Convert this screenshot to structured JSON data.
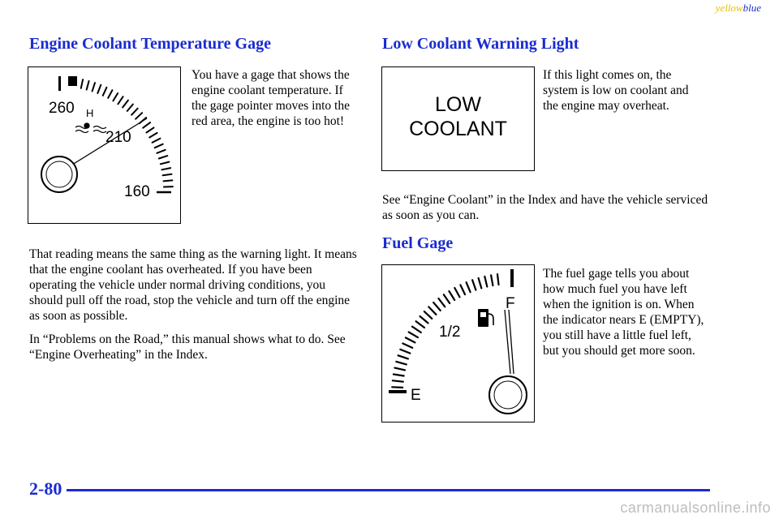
{
  "header": {
    "yellow": "yellow",
    "blue": "blue"
  },
  "coolant_section": {
    "title": "Engine Coolant Temperature Gage",
    "side_text": "You have a gage that shows the engine coolant temperature. If the gage pointer moves into the red area, the engine is too hot!",
    "gauge_labels": {
      "high": "260",
      "mid": "210",
      "low": "160",
      "hot_mark": "H"
    },
    "para1": "That reading means the same thing as the warning light. It means that the engine coolant has overheated. If you have been operating the vehicle under normal driving conditions, you should pull off the road, stop the vehicle and turn off the engine as soon as possible.",
    "para2": "In “Problems on the Road,” this manual shows what to do. See “Engine Overheating” in the Index."
  },
  "low_coolant_section": {
    "title": "Low Coolant Warning Light",
    "light_line1": "LOW",
    "light_line2": "COOLANT",
    "side_text": "If this light comes on, the system is low on coolant and the engine may overheat.",
    "para": "See “Engine Coolant” in the Index and have the vehicle serviced as soon as you can."
  },
  "fuel_section": {
    "title": "Fuel Gage",
    "gauge_labels": {
      "full": "F",
      "half": "1/2",
      "empty": "E"
    },
    "side_text": "The fuel gage tells you about how much fuel you have left when the ignition is on. When the indicator nears E (EMPTY), you still have a little fuel left, but you should get more soon."
  },
  "footer": {
    "page_number": "2-80",
    "watermark": "carmanualsonline.info"
  }
}
